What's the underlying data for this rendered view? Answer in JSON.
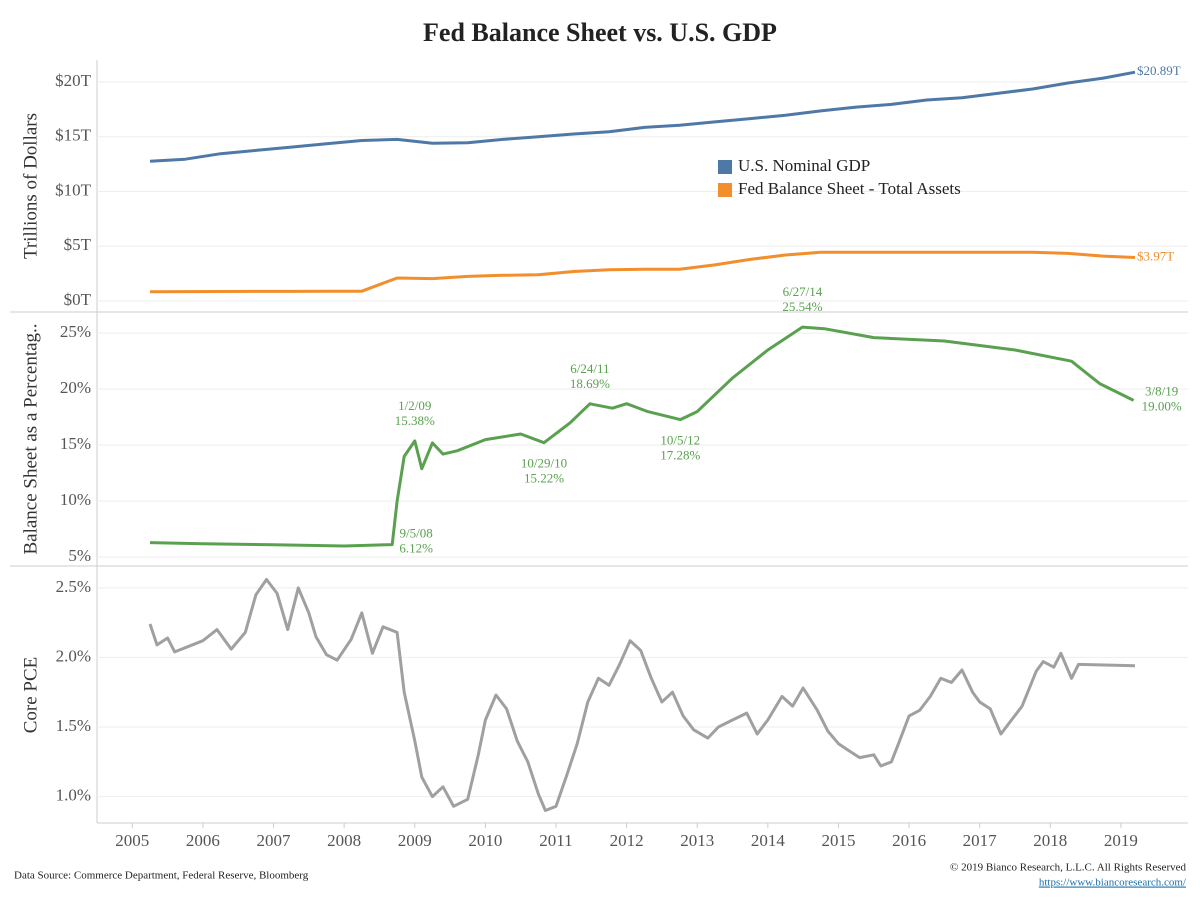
{
  "title": "Fed Balance Sheet vs. U.S. GDP",
  "source": "Data Source: Commerce Department, Federal Reserve, Bloomberg",
  "copyright": "© 2019 Bianco Research, L.L.C. All Rights Reserved",
  "url": "https://www.biancoresearch.com/",
  "chart_data": [
    {
      "type": "line",
      "y_label": "Trillions of Dollars",
      "xlim": [
        2004.5,
        2019.95
      ],
      "ylim": [
        -1,
        22
      ],
      "grid": true,
      "yticks": [
        {
          "value": 0,
          "label": "$0T"
        },
        {
          "value": 5,
          "label": "$5T"
        },
        {
          "value": 10,
          "label": "$10T"
        },
        {
          "value": 15,
          "label": "$15T"
        },
        {
          "value": 20,
          "label": "$20T"
        }
      ],
      "x": [
        2005.25,
        2005.75,
        2006.25,
        2006.75,
        2007.25,
        2007.75,
        2008.25,
        2008.75,
        2009.25,
        2009.75,
        2010.25,
        2010.75,
        2011.25,
        2011.75,
        2012.25,
        2012.75,
        2013.25,
        2013.75,
        2014.25,
        2014.75,
        2015.25,
        2015.75,
        2016.25,
        2016.75,
        2017.25,
        2017.75,
        2018.25,
        2018.75,
        2019.2
      ],
      "series": [
        {
          "name": "U.S. Nominal GDP",
          "color": "#4e79a7",
          "end_label": "$20.89T",
          "values": [
            12.75,
            12.95,
            13.45,
            13.75,
            14.05,
            14.35,
            14.65,
            14.75,
            14.4,
            14.45,
            14.75,
            15.0,
            15.25,
            15.45,
            15.85,
            16.05,
            16.35,
            16.65,
            16.95,
            17.35,
            17.7,
            17.95,
            18.35,
            18.55,
            18.95,
            19.35,
            19.9,
            20.35,
            20.89
          ]
        },
        {
          "name": "Fed Balance Sheet - Total Assets",
          "color": "#f28e2b",
          "end_label": "$3.97T",
          "values": [
            0.85,
            0.86,
            0.87,
            0.88,
            0.88,
            0.89,
            0.9,
            2.1,
            2.05,
            2.25,
            2.35,
            2.4,
            2.7,
            2.85,
            2.9,
            2.9,
            3.3,
            3.8,
            4.2,
            4.45,
            4.45,
            4.45,
            4.45,
            4.45,
            4.45,
            4.45,
            4.35,
            4.1,
            3.97
          ]
        }
      ]
    },
    {
      "type": "line",
      "y_label": "Balance Sheet as a Percentag..",
      "xlim": [
        2004.5,
        2019.95
      ],
      "ylim": [
        4.3,
        26.8
      ],
      "grid": true,
      "yticks": [
        {
          "value": 5,
          "label": "5%"
        },
        {
          "value": 10,
          "label": "10%"
        },
        {
          "value": 15,
          "label": "15%"
        },
        {
          "value": 20,
          "label": "20%"
        },
        {
          "value": 25,
          "label": "25%"
        }
      ],
      "x": [
        2005.25,
        2006.0,
        2007.0,
        2008.0,
        2008.68,
        2008.75,
        2008.85,
        2009.0,
        2009.1,
        2009.25,
        2009.4,
        2009.6,
        2010.0,
        2010.5,
        2010.83,
        2011.2,
        2011.48,
        2011.8,
        2012.0,
        2012.3,
        2012.76,
        2013.0,
        2013.5,
        2014.0,
        2014.49,
        2014.8,
        2015.5,
        2016.5,
        2017.5,
        2018.3,
        2018.7,
        2019.18
      ],
      "series": [
        {
          "name": "Balance Sheet as a Percentage of GDP",
          "color": "#59a14f",
          "values": [
            6.3,
            6.2,
            6.1,
            6.0,
            6.12,
            10,
            14,
            15.38,
            12.9,
            15.2,
            14.2,
            14.5,
            15.5,
            16.0,
            15.22,
            17.0,
            18.69,
            18.3,
            18.7,
            18.0,
            17.28,
            18.0,
            21.0,
            23.5,
            25.54,
            25.4,
            24.6,
            24.3,
            23.5,
            22.5,
            20.5,
            19.0
          ]
        }
      ],
      "annotations": [
        {
          "x": 2008.68,
          "y": 6.12,
          "date": "9/5/08",
          "label": "6.12%"
        },
        {
          "x": 2009.0,
          "y": 15.38,
          "date": "1/2/09",
          "label": "15.38%"
        },
        {
          "x": 2010.83,
          "y": 15.22,
          "date": "10/29/10",
          "label": "15.22%"
        },
        {
          "x": 2011.48,
          "y": 18.69,
          "date": "6/24/11",
          "label": "18.69%"
        },
        {
          "x": 2012.76,
          "y": 17.28,
          "date": "10/5/12",
          "label": "17.28%"
        },
        {
          "x": 2014.49,
          "y": 25.54,
          "date": "6/27/14",
          "label": "25.54%"
        },
        {
          "x": 2019.18,
          "y": 19.0,
          "date": "3/8/19",
          "label": "19.00%"
        }
      ]
    },
    {
      "type": "line",
      "y_label": "Core PCE",
      "xlim": [
        2004.5,
        2019.95
      ],
      "ylim": [
        0.81,
        2.65
      ],
      "grid": true,
      "yticks": [
        {
          "value": 1.0,
          "label": "1.0%"
        },
        {
          "value": 1.5,
          "label": "1.5%"
        },
        {
          "value": 2.0,
          "label": "2.0%"
        },
        {
          "value": 2.5,
          "label": "2.5%"
        }
      ],
      "xticks": [
        2005,
        2006,
        2007,
        2008,
        2009,
        2010,
        2011,
        2012,
        2013,
        2014,
        2015,
        2016,
        2017,
        2018,
        2019
      ],
      "x": [
        2005.25,
        2005.35,
        2005.5,
        2005.6,
        2005.8,
        2006.0,
        2006.2,
        2006.4,
        2006.6,
        2006.75,
        2006.9,
        2007.05,
        2007.2,
        2007.35,
        2007.5,
        2007.6,
        2007.75,
        2007.9,
        2008.1,
        2008.25,
        2008.4,
        2008.55,
        2008.75,
        2008.85,
        2009.0,
        2009.1,
        2009.25,
        2009.4,
        2009.55,
        2009.75,
        2009.9,
        2010.0,
        2010.15,
        2010.3,
        2010.45,
        2010.6,
        2010.75,
        2010.85,
        2011.0,
        2011.15,
        2011.3,
        2011.45,
        2011.6,
        2011.75,
        2011.9,
        2012.05,
        2012.2,
        2012.35,
        2012.5,
        2012.65,
        2012.8,
        2012.95,
        2013.15,
        2013.3,
        2013.5,
        2013.7,
        2013.85,
        2014.0,
        2014.2,
        2014.35,
        2014.5,
        2014.7,
        2014.85,
        2015.0,
        2015.15,
        2015.3,
        2015.5,
        2015.6,
        2015.75,
        2015.85,
        2016.0,
        2016.15,
        2016.3,
        2016.45,
        2016.6,
        2016.75,
        2016.9,
        2017.0,
        2017.15,
        2017.3,
        2017.45,
        2017.6,
        2017.8,
        2017.9,
        2018.05,
        2018.15,
        2018.3,
        2018.4,
        2019.2
      ],
      "series": [
        {
          "name": "Core PCE",
          "color": "#a0a0a0",
          "values": [
            2.24,
            2.09,
            2.14,
            2.04,
            2.08,
            2.12,
            2.2,
            2.06,
            2.18,
            2.45,
            2.56,
            2.46,
            2.2,
            2.5,
            2.32,
            2.15,
            2.02,
            1.98,
            2.13,
            2.32,
            2.03,
            2.22,
            2.18,
            1.75,
            1.4,
            1.14,
            1.0,
            1.07,
            0.93,
            0.98,
            1.3,
            1.55,
            1.73,
            1.63,
            1.4,
            1.25,
            1.02,
            0.9,
            0.93,
            1.15,
            1.38,
            1.68,
            1.85,
            1.8,
            1.95,
            2.12,
            2.05,
            1.85,
            1.68,
            1.75,
            1.58,
            1.48,
            1.42,
            1.5,
            1.55,
            1.6,
            1.45,
            1.55,
            1.72,
            1.65,
            1.78,
            1.62,
            1.47,
            1.38,
            1.33,
            1.28,
            1.3,
            1.22,
            1.25,
            1.38,
            1.58,
            1.62,
            1.72,
            1.85,
            1.82,
            1.91,
            1.75,
            1.68,
            1.63,
            1.45,
            1.55,
            1.65,
            1.9,
            1.97,
            1.93,
            2.03,
            1.85,
            1.95,
            1.94
          ]
        }
      ]
    }
  ]
}
